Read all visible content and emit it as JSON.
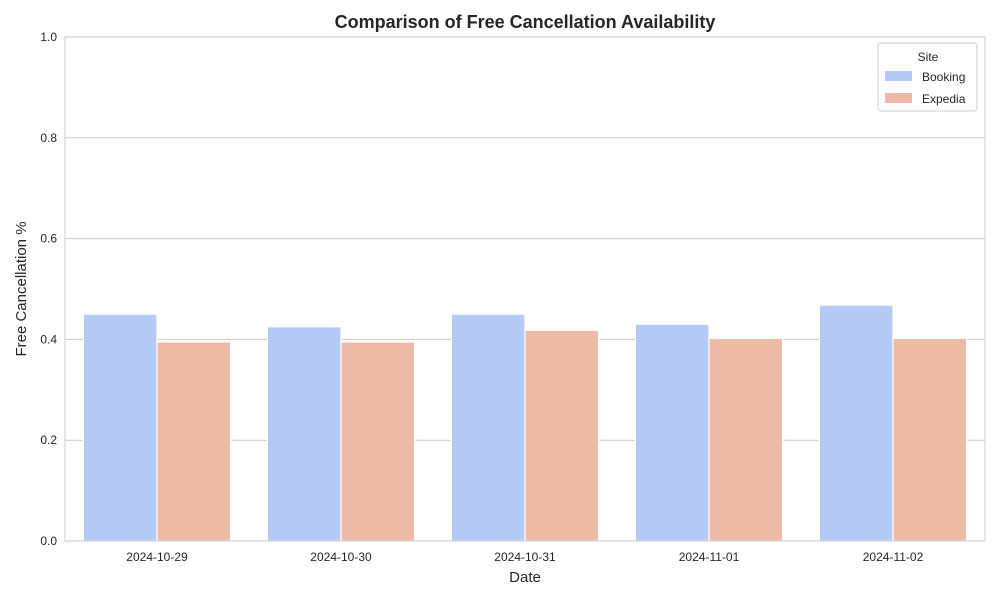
{
  "chart_data": {
    "type": "bar",
    "title": "Comparison of Free Cancellation Availability",
    "xlabel": "Date",
    "ylabel": "Free Cancellation %",
    "categories": [
      "2024-10-29",
      "2024-10-30",
      "2024-10-31",
      "2024-11-01",
      "2024-11-02"
    ],
    "series": [
      {
        "name": "Booking",
        "color": "#b4c9f4",
        "values": [
          0.45,
          0.425,
          0.45,
          0.43,
          0.468
        ]
      },
      {
        "name": "Expedia",
        "color": "#edbba5",
        "values": [
          0.395,
          0.395,
          0.418,
          0.402,
          0.402
        ]
      }
    ],
    "ylim": [
      0,
      1.0
    ],
    "yticks": [
      0.0,
      0.2,
      0.4,
      0.6,
      0.8,
      1.0
    ],
    "ytick_labels": [
      "0.0",
      "0.2",
      "0.4",
      "0.6",
      "0.8",
      "1.0"
    ],
    "grid": true,
    "legend": {
      "title": "Site",
      "placement": "top-right"
    }
  }
}
